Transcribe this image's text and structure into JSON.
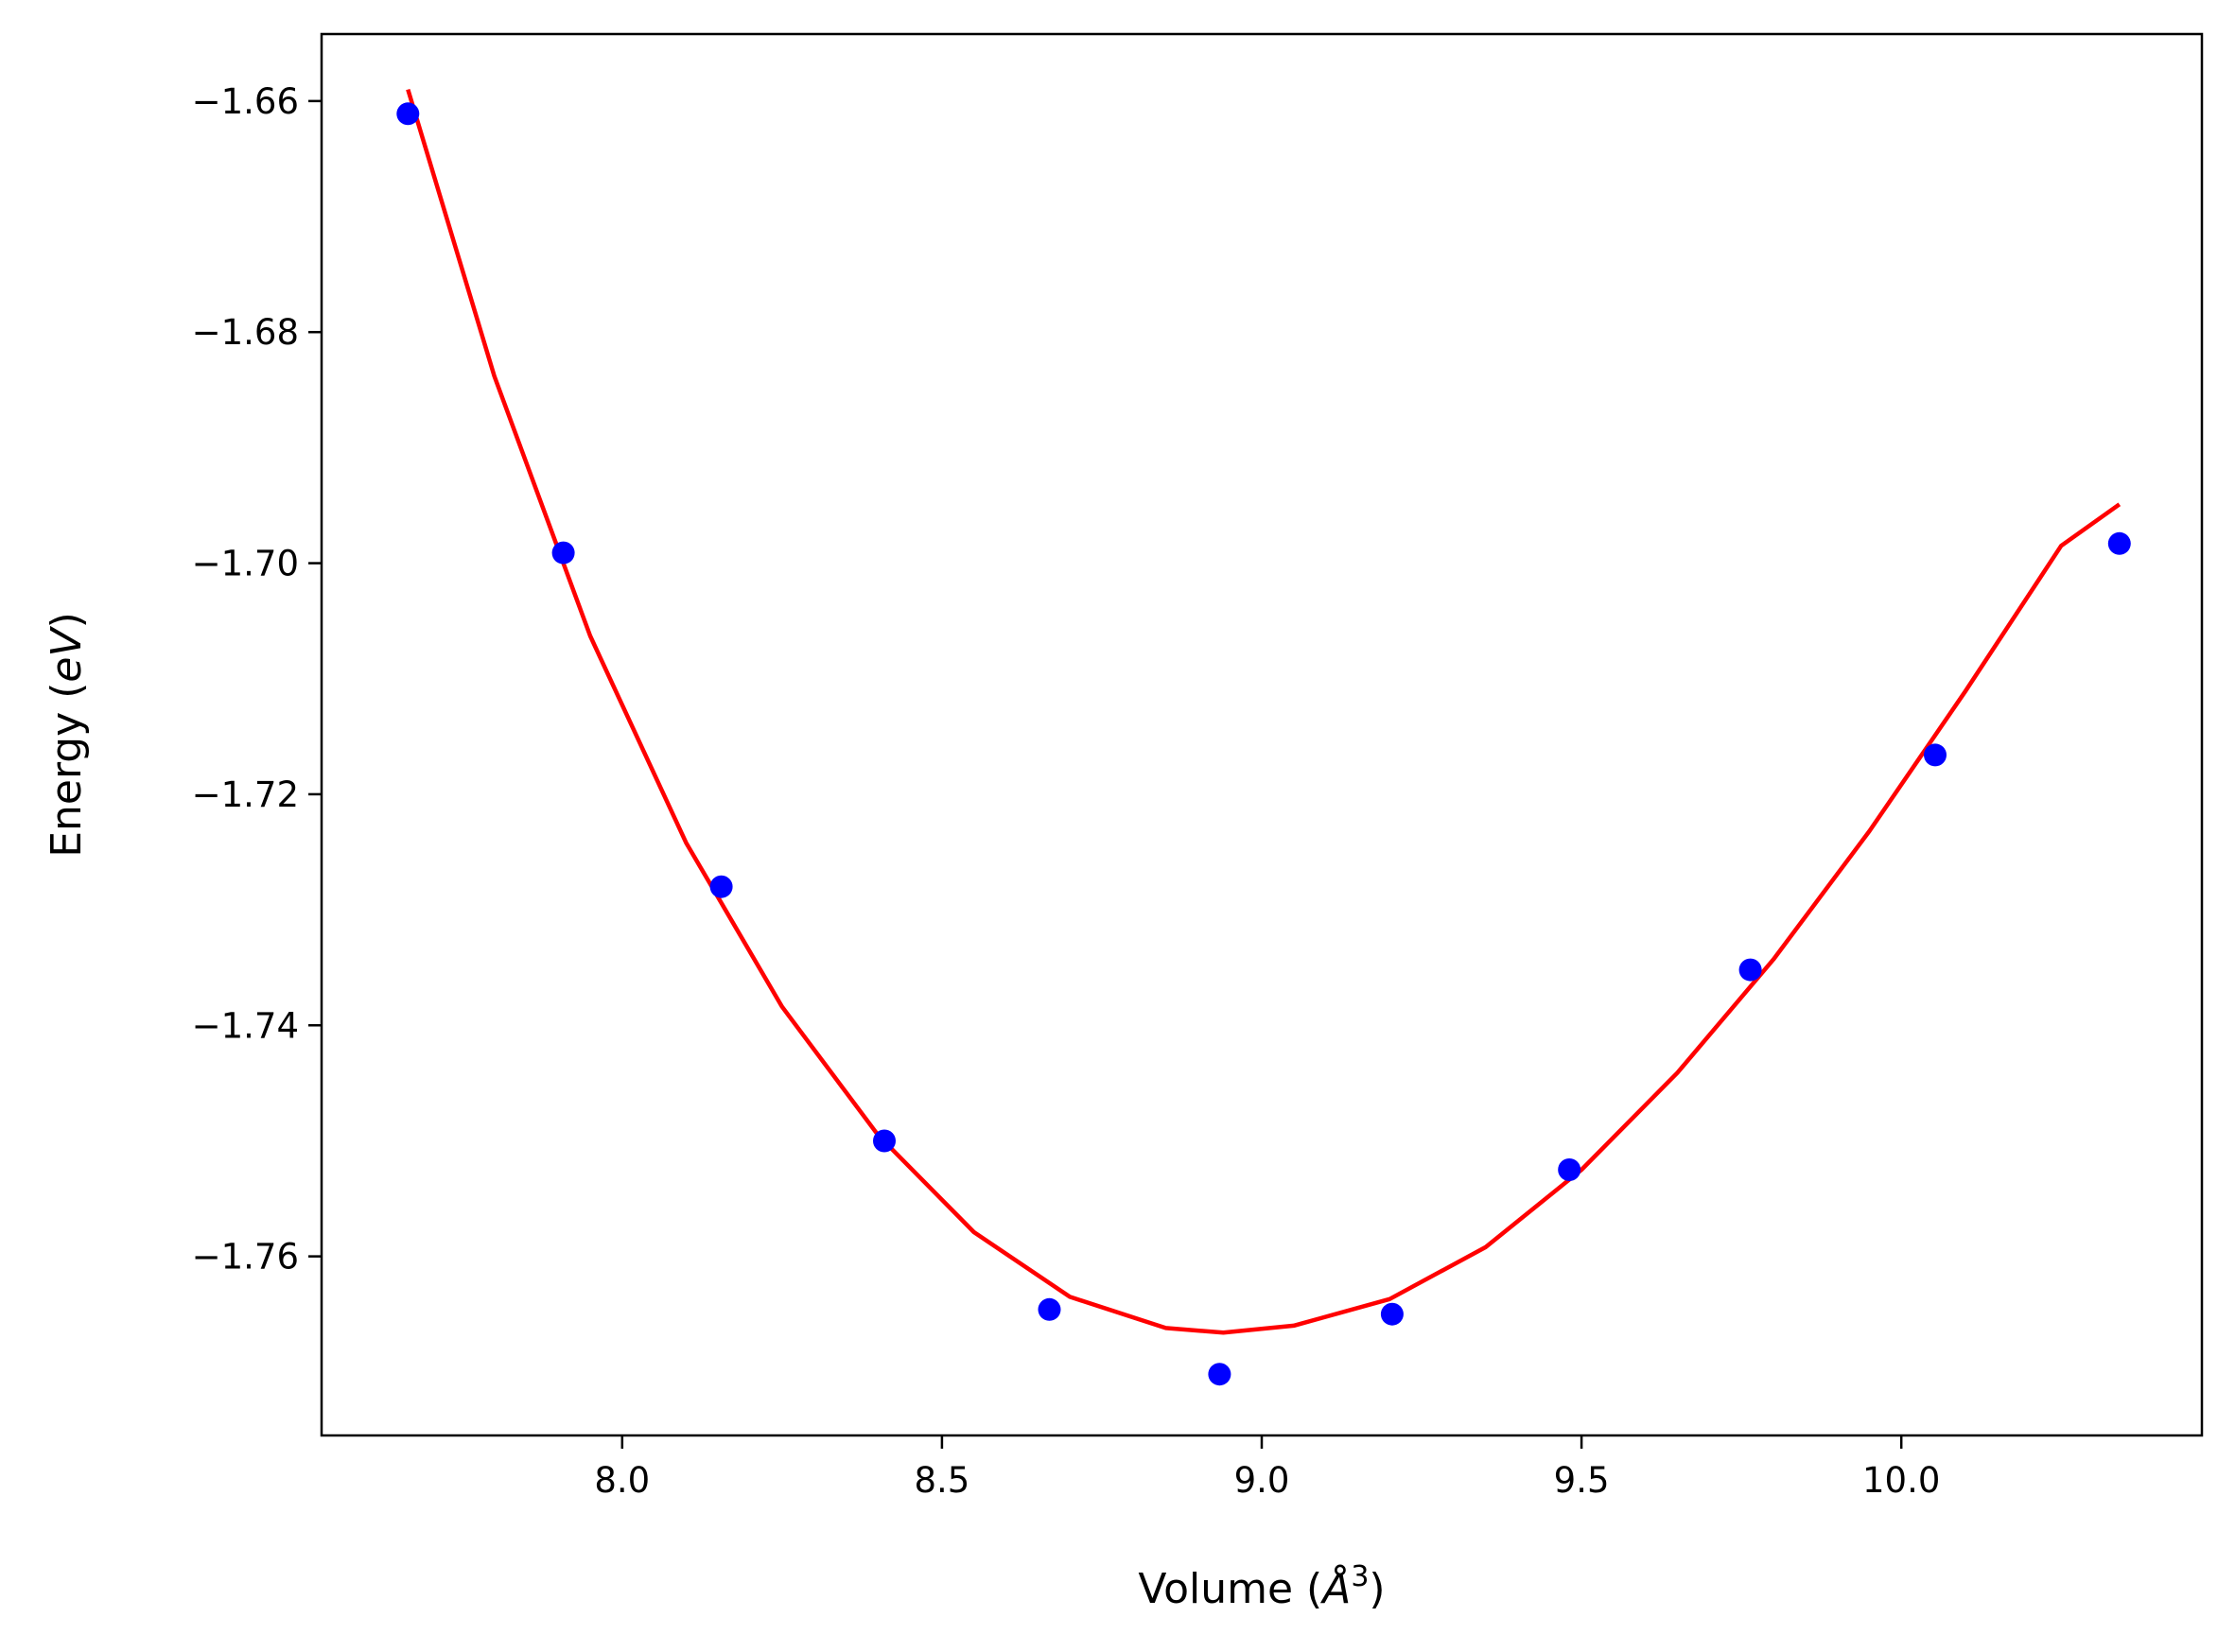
{
  "chart_data": {
    "type": "scatter",
    "title": "",
    "xlabel": {
      "prefix": "Volume (",
      "symbol": "Å",
      "sup": "3",
      "suffix": ")"
    },
    "ylabel": {
      "prefix": "Energy (",
      "italic": "eV",
      "suffix": ")"
    },
    "xlim": [
      7.53,
      10.47
    ],
    "ylim": [
      -1.7755,
      -1.6542
    ],
    "xticks": [
      8.0,
      8.5,
      9.0,
      9.5,
      10.0
    ],
    "xtick_labels": [
      "8.0",
      "8.5",
      "9.0",
      "9.5",
      "10.0"
    ],
    "yticks": [
      -1.66,
      -1.68,
      -1.7,
      -1.72,
      -1.74,
      -1.76
    ],
    "ytick_labels": [
      "−1.66",
      "−1.68",
      "−1.70",
      "−1.72",
      "−1.74",
      "−1.76"
    ],
    "grid": false,
    "series": [
      {
        "kind": "points",
        "color": "#0000ff",
        "x": [
          7.665,
          7.908,
          8.155,
          8.41,
          8.668,
          8.934,
          9.204,
          9.481,
          9.764,
          10.053,
          10.341
        ],
        "y": [
          -1.6611,
          -1.6991,
          -1.728,
          -1.75,
          -1.7646,
          -1.7702,
          -1.765,
          -1.7525,
          -1.7352,
          -1.7166,
          -1.6983
        ]
      },
      {
        "kind": "fit-line",
        "color": "#ff0000",
        "x": [
          7.665,
          7.8,
          7.95,
          8.1,
          8.25,
          8.4,
          8.55,
          8.7,
          8.85,
          8.94,
          9.05,
          9.2,
          9.35,
          9.5,
          9.65,
          9.8,
          9.95,
          10.1,
          10.25,
          10.341
        ],
        "y": [
          -1.659,
          -1.6838,
          -1.7063,
          -1.7242,
          -1.7384,
          -1.7495,
          -1.7579,
          -1.7635,
          -1.7662,
          -1.7666,
          -1.766,
          -1.7637,
          -1.7592,
          -1.7525,
          -1.7441,
          -1.7343,
          -1.7232,
          -1.7111,
          -1.6985,
          -1.6949
        ]
      }
    ]
  }
}
